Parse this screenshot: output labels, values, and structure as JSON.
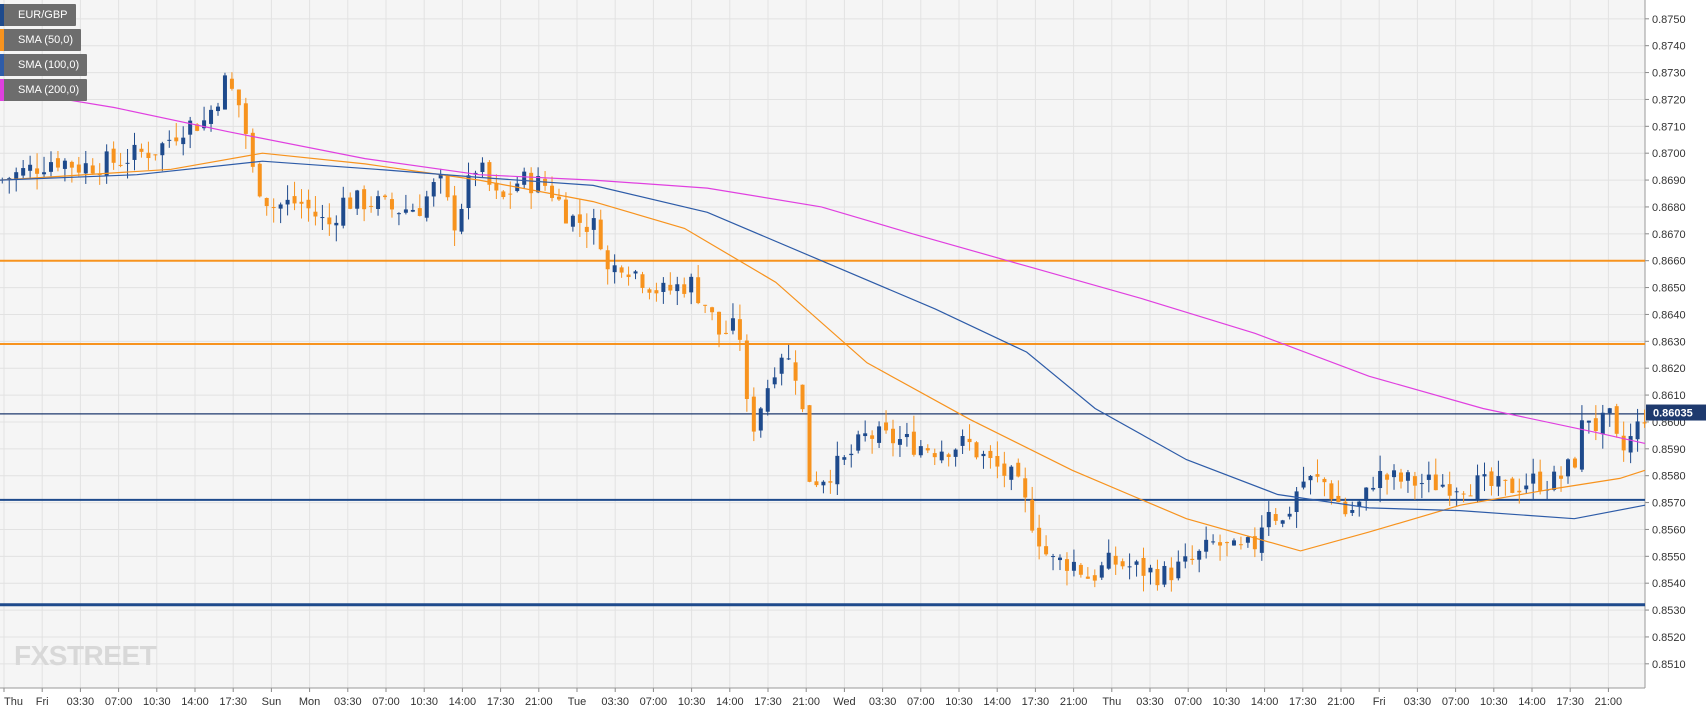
{
  "chart_data": {
    "type": "candlestick",
    "symbol": "EUR/GBP",
    "legend": [
      {
        "label": "EUR/GBP",
        "color": "#1e4a8c"
      },
      {
        "label": "SMA (50,0)",
        "color": "#f7931e"
      },
      {
        "label": "SMA (100,0)",
        "color": "#2e5ca8"
      },
      {
        "label": "SMA (200,0)",
        "color": "#e040e0"
      }
    ],
    "ylim": [
      0.8501,
      0.8757
    ],
    "y_ticks": [
      "0.8750",
      "0.8740",
      "0.8730",
      "0.8720",
      "0.8710",
      "0.8700",
      "0.8690",
      "0.8680",
      "0.8670",
      "0.8660",
      "0.8650",
      "0.8640",
      "0.8630",
      "0.8620",
      "0.8610",
      "0.8600",
      "0.8590",
      "0.8580",
      "0.8570",
      "0.8560",
      "0.8550",
      "0.8540",
      "0.8530",
      "0.8520",
      "0.8510"
    ],
    "x_ticks": [
      "Thu",
      "Fri",
      "03:30",
      "07:00",
      "10:30",
      "14:00",
      "17:30",
      "Sun",
      "Mon",
      "03:30",
      "07:00",
      "10:30",
      "14:00",
      "17:30",
      "21:00",
      "Tue",
      "03:30",
      "07:00",
      "10:30",
      "14:00",
      "17:30",
      "21:00",
      "Wed",
      "03:30",
      "07:00",
      "10:30",
      "14:00",
      "17:30",
      "21:00",
      "Thu",
      "03:30",
      "07:00",
      "10:30",
      "14:00",
      "17:30",
      "21:00",
      "Fri",
      "03:30",
      "07:00",
      "10:30",
      "14:00",
      "17:30",
      "21:00"
    ],
    "last_price": "0.86035",
    "horizontal_levels": [
      {
        "value": 0.866,
        "color": "#f7931e"
      },
      {
        "value": 0.8629,
        "color": "#f7931e"
      },
      {
        "value": 0.8603,
        "color": "#1e3a6e"
      },
      {
        "value": 0.8571,
        "color": "#1e4a8c"
      },
      {
        "value": 0.8532,
        "color": "#1e4a8c"
      }
    ],
    "close_path": [
      [
        0,
        0.869
      ],
      [
        20,
        0.8693
      ],
      [
        48,
        0.8698
      ],
      [
        70,
        0.8695
      ],
      [
        100,
        0.8697
      ],
      [
        140,
        0.8702
      ],
      [
        160,
        0.871
      ],
      [
        180,
        0.8712
      ],
      [
        198,
        0.8727
      ],
      [
        212,
        0.8716
      ],
      [
        222,
        0.8692
      ],
      [
        238,
        0.868
      ],
      [
        262,
        0.8682
      ],
      [
        288,
        0.8673
      ],
      [
        300,
        0.8682
      ],
      [
        325,
        0.8682
      ],
      [
        345,
        0.8679
      ],
      [
        368,
        0.868
      ],
      [
        385,
        0.869
      ],
      [
        398,
        0.8674
      ],
      [
        418,
        0.8696
      ],
      [
        438,
        0.8681
      ],
      [
        455,
        0.869
      ],
      [
        480,
        0.8688
      ],
      [
        500,
        0.8676
      ],
      [
        525,
        0.8672
      ],
      [
        533,
        0.8655
      ],
      [
        545,
        0.866
      ],
      [
        565,
        0.8653
      ],
      [
        580,
        0.8648
      ],
      [
        605,
        0.8652
      ],
      [
        620,
        0.8643
      ],
      [
        630,
        0.8633
      ],
      [
        648,
        0.8635
      ],
      [
        657,
        0.8595
      ],
      [
        670,
        0.861
      ],
      [
        684,
        0.8627
      ],
      [
        700,
        0.8617
      ],
      [
        710,
        0.8578
      ],
      [
        722,
        0.858
      ],
      [
        740,
        0.8585
      ],
      [
        760,
        0.8595
      ],
      [
        790,
        0.8593
      ],
      [
        820,
        0.859
      ],
      [
        848,
        0.8592
      ],
      [
        870,
        0.8584
      ],
      [
        890,
        0.8578
      ],
      [
        905,
        0.8563
      ],
      [
        920,
        0.8548
      ],
      [
        940,
        0.8548
      ],
      [
        955,
        0.8542
      ],
      [
        975,
        0.8548
      ],
      [
        1000,
        0.8545
      ],
      [
        1020,
        0.8543
      ],
      [
        1045,
        0.8548
      ],
      [
        1065,
        0.8555
      ],
      [
        1085,
        0.8551
      ],
      [
        1102,
        0.8555
      ],
      [
        1110,
        0.857
      ],
      [
        1125,
        0.8562
      ],
      [
        1140,
        0.8578
      ],
      [
        1160,
        0.8578
      ],
      [
        1180,
        0.8566
      ],
      [
        1195,
        0.857
      ],
      [
        1205,
        0.858
      ],
      [
        1230,
        0.8578
      ],
      [
        1260,
        0.8577
      ],
      [
        1290,
        0.8577
      ],
      [
        1320,
        0.8575
      ],
      [
        1340,
        0.8578
      ],
      [
        1365,
        0.8578
      ],
      [
        1380,
        0.8585
      ],
      [
        1390,
        0.8604
      ],
      [
        1400,
        0.8598
      ],
      [
        1412,
        0.8601
      ],
      [
        1420,
        0.8587
      ],
      [
        1430,
        0.8594
      ],
      [
        1442,
        0.8603
      ]
    ],
    "sma_50": [
      [
        0,
        0.869
      ],
      [
        150,
        0.8694
      ],
      [
        230,
        0.87
      ],
      [
        320,
        0.8696
      ],
      [
        420,
        0.869
      ],
      [
        520,
        0.8682
      ],
      [
        600,
        0.8672
      ],
      [
        680,
        0.8652
      ],
      [
        760,
        0.8622
      ],
      [
        850,
        0.8601
      ],
      [
        940,
        0.8582
      ],
      [
        1040,
        0.8564
      ],
      [
        1140,
        0.8552
      ],
      [
        1200,
        0.8559
      ],
      [
        1280,
        0.8569
      ],
      [
        1360,
        0.8575
      ],
      [
        1420,
        0.8579
      ],
      [
        1442,
        0.8582
      ]
    ],
    "sma_100": [
      [
        0,
        0.869
      ],
      [
        120,
        0.8692
      ],
      [
        230,
        0.8697
      ],
      [
        330,
        0.8694
      ],
      [
        420,
        0.8691
      ],
      [
        520,
        0.8688
      ],
      [
        620,
        0.8678
      ],
      [
        720,
        0.866
      ],
      [
        820,
        0.8642
      ],
      [
        900,
        0.8626
      ],
      [
        960,
        0.8605
      ],
      [
        1040,
        0.8586
      ],
      [
        1120,
        0.8573
      ],
      [
        1200,
        0.8568
      ],
      [
        1280,
        0.8567
      ],
      [
        1380,
        0.8564
      ],
      [
        1442,
        0.8569
      ]
    ],
    "sma_200": [
      [
        0,
        0.8724
      ],
      [
        100,
        0.8717
      ],
      [
        200,
        0.8708
      ],
      [
        320,
        0.8698
      ],
      [
        420,
        0.8692
      ],
      [
        520,
        0.869
      ],
      [
        620,
        0.8687
      ],
      [
        720,
        0.868
      ],
      [
        800,
        0.867
      ],
      [
        900,
        0.8658
      ],
      [
        1000,
        0.8646
      ],
      [
        1100,
        0.8633
      ],
      [
        1200,
        0.8617
      ],
      [
        1300,
        0.8605
      ],
      [
        1400,
        0.8596
      ],
      [
        1442,
        0.8592
      ]
    ]
  },
  "branding": {
    "logo_text": "FXSTREET"
  }
}
